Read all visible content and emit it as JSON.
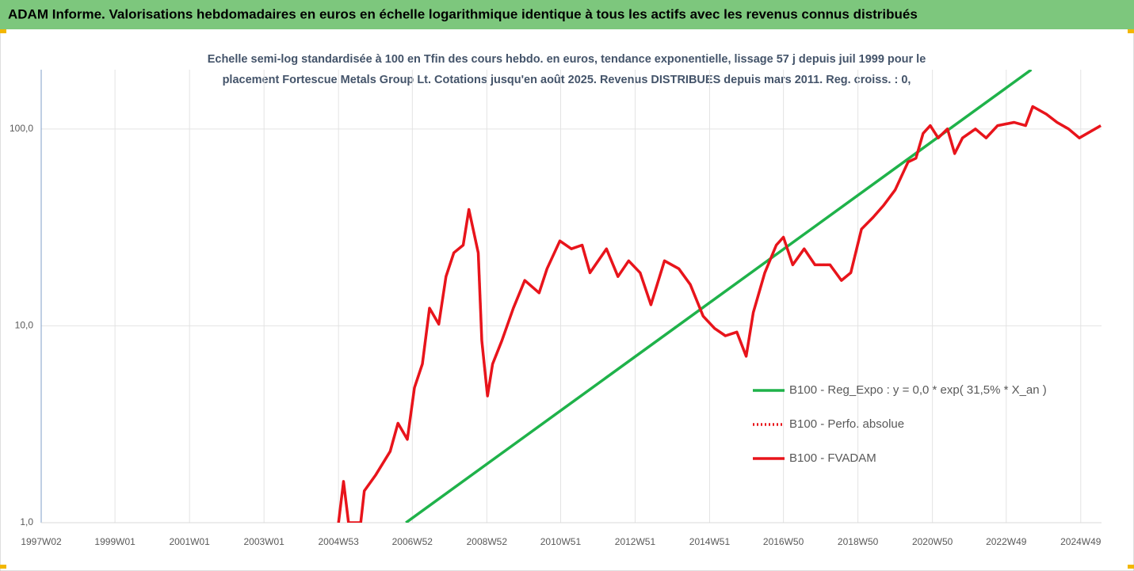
{
  "chart_data": {
    "type": "line",
    "title": "ADAM Informe. Valorisations hebdomadaires en euros en échelle logarithmique identique à tous les actifs avec les revenus connus distribués",
    "subtitle": [
      "Echelle semi-log standardisée à 100 en Tfin des cours hebdo. en euros, tendance exponentielle, lissage 57 j depuis juil 1999 pour le",
      "placement Fortescue Metals Group Lt. Cotations jusqu'en août 2025. Revenus DISTRIBUES depuis mars 2011. Reg. croiss. : 0,"
    ],
    "log_scale": true,
    "grid": true,
    "legend": "lower right",
    "xlim": [
      "1997W02",
      "2025W26"
    ],
    "xticks": [
      "1997W02",
      "1999W01",
      "2001W01",
      "2003W01",
      "2004W53",
      "2006W52",
      "2008W52",
      "2010W51",
      "2012W51",
      "2014W51",
      "2016W50",
      "2018W50",
      "2020W50",
      "2022W49",
      "2024W49"
    ],
    "ylim": [
      1,
      200
    ],
    "yticks": [
      {
        "value": 1,
        "label": "1,0"
      },
      {
        "value": 10,
        "label": "10,0"
      },
      {
        "value": 100,
        "label": "100,0"
      }
    ],
    "series": [
      {
        "name": "B100 - Reg_Expo : y = 0,0 * exp( 31,5% *  X_an )",
        "color": "#1fb24a",
        "style": "solid",
        "x": [
          "2006W43",
          "2023W32"
        ],
        "values": [
          1.0,
          200
        ]
      },
      {
        "name": "B100 - Perfo. absolue",
        "color": "#e8141b",
        "style": "dotted",
        "x": [
          "2005W01",
          "2005W08",
          "2005W15",
          "2005W32",
          "2005W37",
          "2006W01",
          "2006W21",
          "2006W32",
          "2006W45",
          "2007W03",
          "2007W14",
          "2007W24",
          "2007W37",
          "2007W47",
          "2008W06",
          "2008W19",
          "2008W27",
          "2008W40",
          "2008W45",
          "2009W01",
          "2009W08",
          "2009W21",
          "2009W37",
          "2010W01",
          "2010W21",
          "2010W32",
          "2010W50",
          "2011W14",
          "2011W29",
          "2011W40",
          "2012W11",
          "2012W27",
          "2012W42",
          "2013W06",
          "2013W21",
          "2013W40",
          "2014W08",
          "2014W24",
          "2014W42",
          "2015W06",
          "2015W21",
          "2015W37",
          "2015W50",
          "2016W08",
          "2016W24",
          "2016W40",
          "2016W50",
          "2017W11",
          "2017W27",
          "2017W42",
          "2018W11",
          "2018W27",
          "2018W40",
          "2019W03",
          "2019W19",
          "2019W34",
          "2019W50",
          "2020W16",
          "2020W27",
          "2020W37",
          "2020W47",
          "2021W06",
          "2021W19",
          "2021W29",
          "2021W40",
          "2022W06",
          "2022W21",
          "2022W37",
          "2023W08",
          "2023W24",
          "2023W34",
          "2024W01",
          "2024W16",
          "2024W32",
          "2024W47",
          "2025W25"
        ],
        "values": [
          1.0,
          1.62,
          1.0,
          1.0,
          1.45,
          1.75,
          2.3,
          3.2,
          2.65,
          4.85,
          6.4,
          12.3,
          10.2,
          17.8,
          23.5,
          25.7,
          39,
          23.5,
          8.4,
          4.4,
          6.4,
          8.4,
          12.3,
          17,
          14.7,
          19.5,
          27,
          24.6,
          25.7,
          18.6,
          24.6,
          17.8,
          21.4,
          18.6,
          12.8,
          21.4,
          19.5,
          16.2,
          11.2,
          9.7,
          8.9,
          9.3,
          7.0,
          11.7,
          18.6,
          25.7,
          28.2,
          20.4,
          24.6,
          20.4,
          20.4,
          17,
          18.6,
          31,
          35.5,
          41,
          49,
          68,
          71,
          95,
          104,
          90,
          100,
          75,
          90,
          100,
          90,
          104,
          108,
          104,
          130,
          119,
          108,
          100,
          90,
          104
        ]
      },
      {
        "name": "B100 - FVADAM",
        "color": "#e8141b",
        "style": "solid",
        "x": [
          "2005W01",
          "2005W08",
          "2005W15",
          "2005W32",
          "2005W37",
          "2006W01",
          "2006W21",
          "2006W32",
          "2006W45",
          "2007W03",
          "2007W14",
          "2007W24",
          "2007W37",
          "2007W47",
          "2008W06",
          "2008W19",
          "2008W27",
          "2008W40",
          "2008W45",
          "2009W01",
          "2009W08",
          "2009W21",
          "2009W37",
          "2010W01",
          "2010W21",
          "2010W32",
          "2010W50",
          "2011W14",
          "2011W29",
          "2011W40",
          "2012W11",
          "2012W27",
          "2012W42",
          "2013W06",
          "2013W21",
          "2013W40",
          "2014W08",
          "2014W24",
          "2014W42",
          "2015W06",
          "2015W21",
          "2015W37",
          "2015W50",
          "2016W08",
          "2016W24",
          "2016W40",
          "2016W50",
          "2017W11",
          "2017W27",
          "2017W42",
          "2018W11",
          "2018W27",
          "2018W40",
          "2019W03",
          "2019W19",
          "2019W34",
          "2019W50",
          "2020W16",
          "2020W27",
          "2020W37",
          "2020W47",
          "2021W06",
          "2021W19",
          "2021W29",
          "2021W40",
          "2022W06",
          "2022W21",
          "2022W37",
          "2023W08",
          "2023W24",
          "2023W34",
          "2024W01",
          "2024W16",
          "2024W32",
          "2024W47",
          "2025W25"
        ],
        "values": [
          1.0,
          1.62,
          1.0,
          1.0,
          1.45,
          1.75,
          2.3,
          3.2,
          2.65,
          4.85,
          6.4,
          12.3,
          10.2,
          17.8,
          23.5,
          25.7,
          39,
          23.5,
          8.4,
          4.4,
          6.4,
          8.4,
          12.3,
          17,
          14.7,
          19.5,
          27,
          24.6,
          25.7,
          18.6,
          24.6,
          17.8,
          21.4,
          18.6,
          12.8,
          21.4,
          19.5,
          16.2,
          11.2,
          9.7,
          8.9,
          9.3,
          7.0,
          11.7,
          18.6,
          25.7,
          28.2,
          20.4,
          24.6,
          20.4,
          20.4,
          17,
          18.6,
          31,
          35.5,
          41,
          49,
          68,
          71,
          95,
          104,
          90,
          100,
          75,
          90,
          100,
          90,
          104,
          108,
          104,
          130,
          119,
          108,
          100,
          90,
          104
        ]
      }
    ]
  }
}
